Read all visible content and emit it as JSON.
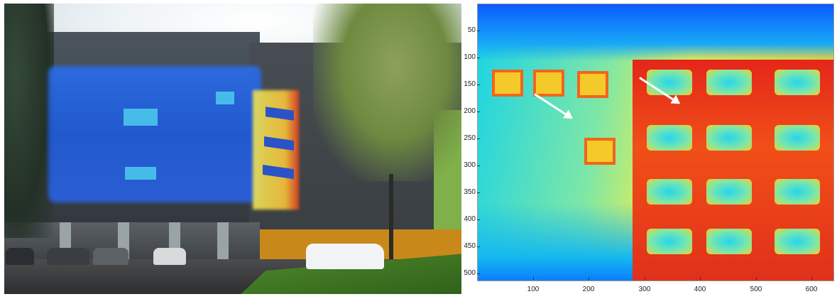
{
  "left_panel": {
    "kind": "photo of building facade with thermal image overlay"
  },
  "right_panel": {
    "kind": "false-color thermal image",
    "colormap": [
      "#0a5bff",
      "#19d3e6",
      "#7fe7a6",
      "#f1ee4a",
      "#f14f19",
      "#c81414"
    ],
    "y_ticks": [
      "50",
      "100",
      "150",
      "200",
      "250",
      "300",
      "350",
      "400",
      "450",
      "500"
    ],
    "x_ticks": [
      "100",
      "200",
      "300",
      "400",
      "500",
      "600"
    ],
    "annotations": [
      "white-arrow",
      "white-arrow"
    ]
  }
}
